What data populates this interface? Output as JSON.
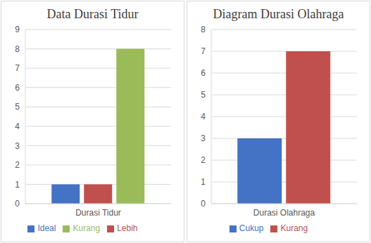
{
  "chart_data": [
    {
      "type": "bar",
      "title": "Data Durasi Tidur",
      "categories": [
        "Durasi Tidur"
      ],
      "series": [
        {
          "name": "Ideal",
          "color": "#4472c4",
          "values": [
            1
          ]
        },
        {
          "name": "Lebih",
          "color": "#c0504d",
          "values": [
            1
          ]
        },
        {
          "name": "Kurang",
          "color": "#9bbb59",
          "values": [
            8
          ]
        }
      ],
      "ylim": [
        0,
        9
      ],
      "yticks": [
        0,
        1,
        2,
        3,
        4,
        5,
        6,
        7,
        8,
        9
      ],
      "grid": true,
      "legend": "bottom"
    },
    {
      "type": "bar",
      "title": "Diagram Durasi Olahraga",
      "categories": [
        "Durasi Olahraga"
      ],
      "series": [
        {
          "name": "Cukup",
          "color": "#4472c4",
          "values": [
            3
          ]
        },
        {
          "name": "Kurang",
          "color": "#c0504d",
          "values": [
            7
          ]
        }
      ],
      "ylim": [
        0,
        8
      ],
      "yticks": [
        0,
        1,
        2,
        3,
        4,
        5,
        6,
        7,
        8
      ],
      "grid": true,
      "legend": "bottom"
    }
  ]
}
